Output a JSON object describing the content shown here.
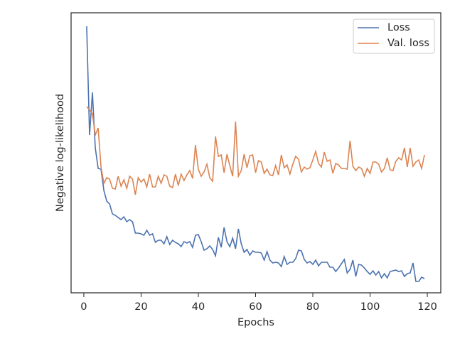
{
  "chart_data": {
    "type": "line",
    "xlabel": "Epochs",
    "ylabel": "Negative log-likelihood",
    "xlim": [
      -4.45,
      124.7
    ],
    "xticks": [
      0,
      20,
      40,
      60,
      80,
      100,
      120
    ],
    "ylim": [
      0,
      394
    ],
    "legend": "upper right",
    "x": [
      1,
      2,
      3,
      4,
      5,
      6,
      7,
      8,
      9,
      10,
      11,
      12,
      13,
      14,
      15,
      16,
      17,
      18,
      19,
      20,
      21,
      22,
      23,
      24,
      25,
      26,
      27,
      28,
      29,
      30,
      31,
      32,
      33,
      34,
      35,
      36,
      37,
      38,
      39,
      40,
      41,
      42,
      43,
      44,
      45,
      46,
      47,
      48,
      49,
      50,
      51,
      52,
      53,
      54,
      55,
      56,
      57,
      58,
      59,
      60,
      61,
      62,
      63,
      64,
      65,
      66,
      67,
      68,
      69,
      70,
      71,
      72,
      73,
      74,
      75,
      76,
      77,
      78,
      79,
      80,
      81,
      82,
      83,
      84,
      85,
      86,
      87,
      88,
      89,
      90,
      91,
      92,
      93,
      94,
      95,
      96,
      97,
      98,
      99,
      100,
      101,
      102,
      103,
      104,
      105,
      106,
      107,
      108,
      109,
      110,
      111,
      112,
      113,
      114,
      115,
      116,
      117,
      118,
      119
    ],
    "series": [
      {
        "name": "Loss",
        "color": "#4c72b0",
        "values": [
          375,
          222,
          282,
          204,
          175,
          174,
          144,
          129,
          125,
          111,
          109,
          106,
          103,
          107,
          100,
          103,
          100,
          84,
          84,
          83,
          81,
          88,
          81,
          83,
          71,
          74,
          74,
          69,
          79,
          68,
          74,
          71,
          69,
          65,
          72,
          70,
          72,
          64,
          81,
          82,
          72,
          60,
          62,
          66,
          61,
          52,
          78,
          64,
          92,
          72,
          65,
          77,
          62,
          90,
          69,
          57,
          61,
          53,
          59,
          57,
          57,
          56,
          46,
          58,
          46,
          42,
          43,
          42,
          37,
          51,
          40,
          43,
          43,
          48,
          60,
          59,
          47,
          42,
          44,
          40,
          46,
          38,
          43,
          43,
          43,
          36,
          36,
          30,
          35,
          41,
          47,
          28,
          33,
          46,
          23,
          40,
          39,
          35,
          30,
          26,
          31,
          25,
          30,
          21,
          27,
          21,
          30,
          31,
          32,
          30,
          31,
          23,
          27,
          28,
          42,
          16,
          16,
          22,
          20
        ]
      },
      {
        "name": "Val. loss",
        "color": "#dd8452",
        "values": [
          262,
          257,
          252,
          222,
          232,
          177,
          154,
          162,
          160,
          147,
          146,
          164,
          150,
          159,
          147,
          164,
          160,
          138,
          162,
          156,
          160,
          149,
          167,
          149,
          149,
          164,
          154,
          166,
          164,
          150,
          148,
          167,
          151,
          167,
          158,
          166,
          172,
          161,
          208,
          174,
          164,
          170,
          181,
          162,
          157,
          220,
          192,
          194,
          169,
          195,
          179,
          164,
          241,
          164,
          172,
          195,
          176,
          193,
          194,
          169,
          186,
          184,
          168,
          174,
          166,
          165,
          179,
          166,
          194,
          176,
          180,
          167,
          181,
          192,
          188,
          170,
          177,
          174,
          176,
          187,
          199,
          182,
          177,
          198,
          185,
          187,
          168,
          182,
          180,
          175,
          175,
          174,
          214,
          178,
          172,
          177,
          175,
          164,
          175,
          168,
          184,
          184,
          181,
          170,
          175,
          190,
          173,
          172,
          185,
          190,
          187,
          204,
          177,
          204,
          178,
          184,
          187,
          175,
          194
        ]
      }
    ]
  }
}
